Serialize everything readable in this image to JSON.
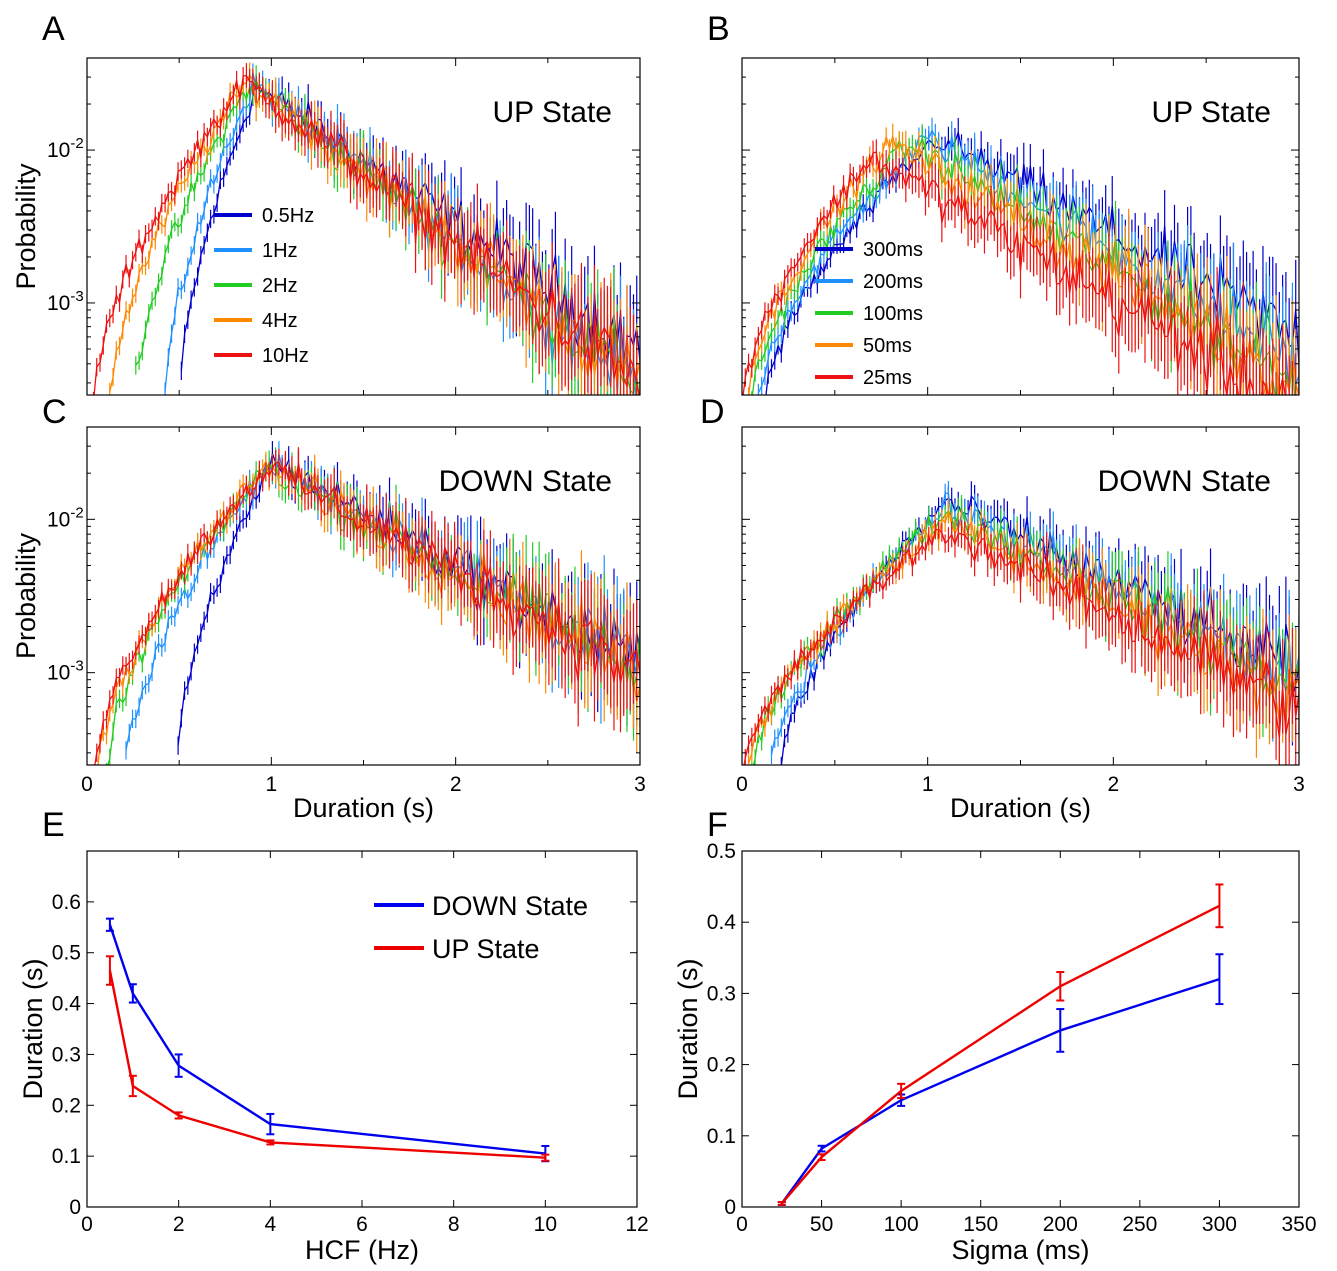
{
  "chart_data": [
    {
      "panel": "A",
      "type": "line",
      "title": "UP State",
      "ylabel": "Probability",
      "xlabel": "",
      "yscale": "log",
      "xlim": [
        0,
        3
      ],
      "ylim": [
        0.00025,
        0.04
      ],
      "ytick_labels": [
        "10^-3",
        "10^-2"
      ],
      "legend_placement": "center-left",
      "series": [
        {
          "name": "0.5Hz",
          "color": "#0000cc",
          "onset": 0.5,
          "peak_x": 0.92,
          "peak_y": 0.026,
          "tail_y": 0.0005
        },
        {
          "name": "1Hz",
          "color": "#1e90ff",
          "onset": 0.42,
          "peak_x": 0.9,
          "peak_y": 0.027,
          "tail_y": 0.0003
        },
        {
          "name": "2Hz",
          "color": "#22cc22",
          "onset": 0.25,
          "peak_x": 0.88,
          "peak_y": 0.027,
          "tail_y": 0.0003
        },
        {
          "name": "4Hz",
          "color": "#ff8800",
          "onset": 0.12,
          "peak_x": 0.87,
          "peak_y": 0.028,
          "tail_y": 0.0003
        },
        {
          "name": "10Hz",
          "color": "#ee1111",
          "onset": 0.03,
          "peak_x": 0.86,
          "peak_y": 0.028,
          "tail_y": 0.0003
        }
      ]
    },
    {
      "panel": "B",
      "type": "line",
      "title": "UP State",
      "ylabel": "",
      "xlabel": "",
      "yscale": "log",
      "xlim": [
        0,
        3
      ],
      "ylim": [
        0.00025,
        0.04
      ],
      "legend_placement": "bottom-left",
      "series": [
        {
          "name": "300ms",
          "color": "#0000cc",
          "onset": 0.12,
          "peak_x": 1.05,
          "peak_y": 0.012,
          "tail_y": 0.0006
        },
        {
          "name": "200ms",
          "color": "#1e90ff",
          "onset": 0.08,
          "peak_x": 1.0,
          "peak_y": 0.012,
          "tail_y": 0.0004
        },
        {
          "name": "100ms",
          "color": "#22cc22",
          "onset": 0.05,
          "peak_x": 0.9,
          "peak_y": 0.011,
          "tail_y": 0.0003
        },
        {
          "name": "50ms",
          "color": "#ff8800",
          "onset": 0.02,
          "peak_x": 0.8,
          "peak_y": 0.011,
          "tail_y": 0.0003
        },
        {
          "name": "25ms",
          "color": "#ee1111",
          "onset": 0.0,
          "peak_x": 0.7,
          "peak_y": 0.009,
          "tail_y": 0.0002
        }
      ]
    },
    {
      "panel": "C",
      "type": "line",
      "title": "DOWN State",
      "ylabel": "Probability",
      "xlabel": "Duration (s)",
      "yscale": "log",
      "xlim": [
        0,
        3
      ],
      "ylim": [
        0.00025,
        0.04
      ],
      "xticks": [
        0,
        1,
        2,
        3
      ],
      "ytick_labels": [
        "10^-3",
        "10^-2"
      ],
      "series": [
        {
          "name": "0.5Hz",
          "color": "#0000cc",
          "onset": 0.48,
          "peak_x": 1.0,
          "peak_y": 0.024,
          "tail_y": 0.0011
        },
        {
          "name": "1Hz",
          "color": "#1e90ff",
          "onset": 0.2,
          "peak_x": 1.0,
          "peak_y": 0.023,
          "tail_y": 0.0011
        },
        {
          "name": "2Hz",
          "color": "#22cc22",
          "onset": 0.1,
          "peak_x": 0.98,
          "peak_y": 0.022,
          "tail_y": 0.001
        },
        {
          "name": "4Hz",
          "color": "#ff8800",
          "onset": 0.05,
          "peak_x": 0.98,
          "peak_y": 0.022,
          "tail_y": 0.001
        },
        {
          "name": "10Hz",
          "color": "#ee1111",
          "onset": 0.03,
          "peak_x": 0.98,
          "peak_y": 0.022,
          "tail_y": 0.001
        }
      ]
    },
    {
      "panel": "D",
      "type": "line",
      "title": "DOWN State",
      "ylabel": "",
      "xlabel": "Duration (s)",
      "yscale": "log",
      "xlim": [
        0,
        3
      ],
      "ylim": [
        0.00025,
        0.04
      ],
      "xticks": [
        0,
        1,
        2,
        3
      ],
      "series": [
        {
          "name": "300ms",
          "color": "#0000cc",
          "onset": 0.2,
          "peak_x": 1.1,
          "peak_y": 0.013,
          "tail_y": 0.001
        },
        {
          "name": "200ms",
          "color": "#1e90ff",
          "onset": 0.15,
          "peak_x": 1.1,
          "peak_y": 0.012,
          "tail_y": 0.0009
        },
        {
          "name": "100ms",
          "color": "#22cc22",
          "onset": 0.05,
          "peak_x": 1.1,
          "peak_y": 0.011,
          "tail_y": 0.0008
        },
        {
          "name": "50ms",
          "color": "#ff8800",
          "onset": 0.02,
          "peak_x": 1.1,
          "peak_y": 0.0095,
          "tail_y": 0.0007
        },
        {
          "name": "25ms",
          "color": "#ee1111",
          "onset": 0.0,
          "peak_x": 1.1,
          "peak_y": 0.0085,
          "tail_y": 0.0006
        }
      ]
    },
    {
      "panel": "E",
      "type": "line",
      "title": "",
      "xlabel": "HCF (Hz)",
      "ylabel": "Duration (s)",
      "xlim": [
        0,
        12
      ],
      "ylim": [
        0,
        0.7
      ],
      "xticks": [
        0,
        2,
        4,
        6,
        8,
        10,
        12
      ],
      "yticks": [
        0,
        0.1,
        0.2,
        0.3,
        0.4,
        0.5,
        0.6
      ],
      "legend_placement": "top-right",
      "x": [
        0.5,
        1,
        2,
        4,
        10
      ],
      "series": [
        {
          "name": "DOWN State",
          "color": "#0000ee",
          "values": [
            0.555,
            0.42,
            0.278,
            0.163,
            0.105
          ],
          "err": [
            0.012,
            0.018,
            0.022,
            0.02,
            0.015
          ]
        },
        {
          "name": "UP State",
          "color": "#ee0000",
          "values": [
            0.465,
            0.238,
            0.18,
            0.127,
            0.097
          ],
          "err": [
            0.028,
            0.02,
            0.006,
            0.004,
            0.006
          ]
        }
      ]
    },
    {
      "panel": "F",
      "type": "line",
      "title": "",
      "xlabel": "Sigma (ms)",
      "ylabel": "Duration (s)",
      "xlim": [
        0,
        350
      ],
      "ylim": [
        0,
        0.5
      ],
      "xticks": [
        0,
        50,
        100,
        150,
        200,
        250,
        300,
        350
      ],
      "yticks": [
        0,
        0.1,
        0.2,
        0.3,
        0.4,
        0.5
      ],
      "x": [
        25,
        50,
        100,
        200,
        300
      ],
      "series": [
        {
          "color": "#0000ee",
          "values": [
            0.005,
            0.082,
            0.15,
            0.248,
            0.32
          ],
          "err": [
            0.002,
            0.004,
            0.008,
            0.03,
            0.035
          ]
        },
        {
          "color": "#ee0000",
          "values": [
            0.005,
            0.07,
            0.163,
            0.31,
            0.423
          ],
          "err": [
            0.002,
            0.004,
            0.01,
            0.02,
            0.03
          ]
        }
      ]
    }
  ]
}
